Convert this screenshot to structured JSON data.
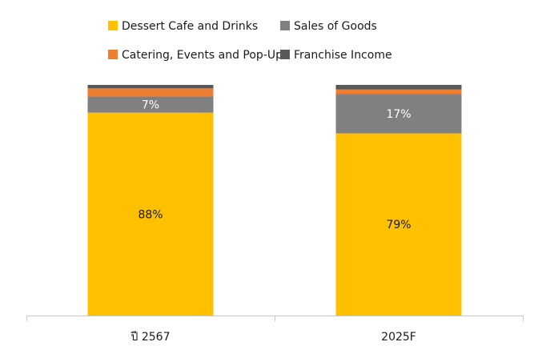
{
  "chart_data": {
    "type": "bar",
    "stacked": true,
    "normalized_percent": true,
    "categories": [
      "ปี 2567",
      "2025F"
    ],
    "series": [
      {
        "name": "Dessert Cafe and Drinks",
        "values": [
          88,
          79
        ],
        "color": "#FFC000",
        "labels": [
          "88%",
          "79%"
        ],
        "label_color": "#1a1a1a"
      },
      {
        "name": "Sales of Goods",
        "values": [
          7,
          17
        ],
        "color": "#808080",
        "labels": [
          "7%",
          "17%"
        ],
        "label_color": "#ffffff"
      },
      {
        "name": "Catering, Events and Pop-Up",
        "values": [
          3.5,
          2
        ],
        "color": "#ED7D31",
        "labels": [
          "",
          ""
        ],
        "label_color": "#ffffff"
      },
      {
        "name": "Franchise Income",
        "values": [
          1.5,
          2
        ],
        "color": "#595959",
        "labels": [
          "",
          ""
        ],
        "label_color": "#ffffff"
      }
    ],
    "ylim": [
      0,
      100
    ],
    "legend_position": "top",
    "grid": false,
    "title": "",
    "xlabel": "",
    "ylabel": ""
  }
}
